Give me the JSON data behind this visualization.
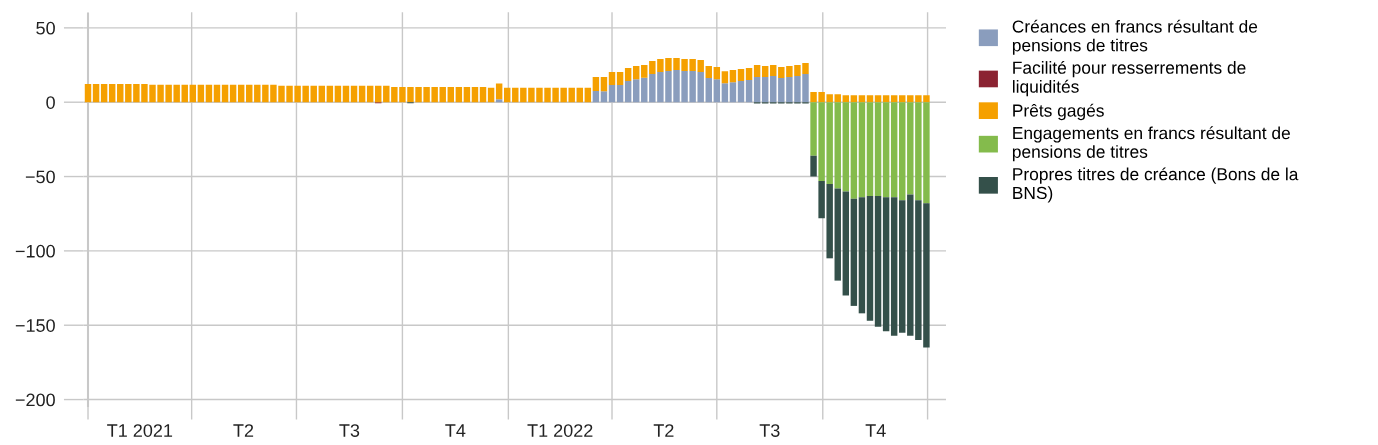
{
  "chart_data": {
    "type": "bar",
    "stacked": true,
    "x": [
      "2021-01-01",
      "2021-01-08",
      "2021-01-15",
      "2021-01-22",
      "2021-01-29",
      "2021-02-05",
      "2021-02-12",
      "2021-02-19",
      "2021-02-26",
      "2021-03-05",
      "2021-03-12",
      "2021-03-19",
      "2021-03-26",
      "2021-04-02",
      "2021-04-09",
      "2021-04-16",
      "2021-04-23",
      "2021-04-30",
      "2021-05-07",
      "2021-05-14",
      "2021-05-21",
      "2021-05-28",
      "2021-06-04",
      "2021-06-11",
      "2021-06-18",
      "2021-06-25",
      "2021-07-02",
      "2021-07-09",
      "2021-07-16",
      "2021-07-23",
      "2021-07-30",
      "2021-08-06",
      "2021-08-13",
      "2021-08-20",
      "2021-08-27",
      "2021-09-03",
      "2021-09-10",
      "2021-09-17",
      "2021-09-24",
      "2021-10-01",
      "2021-10-08",
      "2021-10-15",
      "2021-10-22",
      "2021-10-29",
      "2021-11-05",
      "2021-11-12",
      "2021-11-19",
      "2021-11-26",
      "2021-12-03",
      "2021-12-10",
      "2021-12-17",
      "2021-12-24",
      "2021-12-31",
      "2022-01-07",
      "2022-01-14",
      "2022-01-21",
      "2022-01-28",
      "2022-02-04",
      "2022-02-11",
      "2022-02-18",
      "2022-02-25",
      "2022-03-04",
      "2022-03-11",
      "2022-03-18",
      "2022-03-25",
      "2022-04-01",
      "2022-04-08",
      "2022-04-15",
      "2022-04-22",
      "2022-04-29",
      "2022-05-06",
      "2022-05-13",
      "2022-05-20",
      "2022-05-27",
      "2022-06-03",
      "2022-06-10",
      "2022-06-17",
      "2022-06-24",
      "2022-07-01",
      "2022-07-08",
      "2022-07-15",
      "2022-07-22",
      "2022-07-29",
      "2022-08-05",
      "2022-08-12",
      "2022-08-19",
      "2022-08-26",
      "2022-09-02",
      "2022-09-09",
      "2022-09-16",
      "2022-09-23",
      "2022-09-30",
      "2022-10-07",
      "2022-10-14",
      "2022-10-21",
      "2022-10-28",
      "2022-11-04",
      "2022-11-11",
      "2022-11-18",
      "2022-11-25",
      "2022-12-02",
      "2022-12-09",
      "2022-12-16",
      "2022-12-23",
      "2022-12-30"
    ],
    "series": [
      {
        "name": "Créances en francs résultant de\npensions de titres",
        "color": "#8a9dbd",
        "values": [
          0,
          0,
          0,
          0,
          0,
          0,
          0,
          0,
          0,
          0,
          0,
          0,
          0,
          0,
          0,
          0,
          0,
          0,
          0,
          0,
          0,
          0,
          0,
          0,
          0,
          0,
          0,
          0,
          0,
          0,
          0,
          0,
          0,
          0,
          0,
          0,
          0,
          0,
          0,
          0,
          0,
          0,
          0,
          0,
          0,
          0,
          0,
          0,
          0,
          0,
          0,
          2,
          0,
          0,
          0,
          0,
          0,
          0,
          0,
          0,
          0,
          0,
          0,
          7.6,
          7.4,
          11.5,
          11.5,
          14.2,
          15.5,
          16.4,
          18.9,
          20.3,
          21,
          21.6,
          21,
          21,
          20.3,
          16.2,
          15.5,
          12.8,
          13.5,
          14.2,
          14.9,
          16.9,
          16.9,
          17.6,
          16.2,
          16.9,
          17.6,
          18.9,
          0,
          0,
          0,
          0,
          0,
          0,
          0,
          0,
          0,
          0,
          0,
          0,
          0,
          0,
          0
        ]
      },
      {
        "name": "Facilité pour resserrements de\nliquidités",
        "color": "#8b2332",
        "values": [
          0,
          0,
          0,
          0,
          0,
          0,
          0,
          0,
          0,
          0,
          0,
          0,
          0,
          0,
          0,
          0,
          0,
          0,
          0,
          0,
          0,
          0,
          0,
          0,
          0,
          0,
          0,
          0,
          0,
          0,
          0,
          0,
          0,
          0,
          0,
          0,
          -0.7,
          0,
          0,
          0,
          0,
          0,
          0,
          0,
          0,
          0,
          0,
          0,
          0,
          0,
          0,
          0,
          0,
          0,
          0,
          0,
          0,
          0,
          0,
          0,
          0,
          0,
          0,
          0,
          0,
          0,
          0,
          0,
          0,
          0,
          0,
          0,
          0,
          0,
          0,
          0,
          0,
          0,
          0,
          0,
          0,
          0,
          0,
          0,
          0,
          0,
          0,
          0,
          0,
          0,
          0,
          0,
          0,
          0,
          0,
          0,
          0,
          0,
          0,
          0,
          0,
          0,
          0,
          0,
          0
        ]
      },
      {
        "name": "Prêts gagés",
        "color": "#f5a000",
        "values": [
          12.3,
          12.3,
          12.3,
          12.3,
          12.3,
          12.3,
          12.3,
          12.3,
          11.7,
          11.7,
          11.7,
          11.7,
          11.7,
          11.7,
          11.7,
          11.7,
          11.7,
          11.7,
          11.7,
          11.7,
          11.7,
          11.7,
          11.7,
          11.7,
          11,
          11,
          11,
          11,
          11,
          11,
          11,
          11,
          11,
          11,
          11,
          11,
          11,
          11,
          10.3,
          10.3,
          10.3,
          10.3,
          10.3,
          10.3,
          10.3,
          10.3,
          10.3,
          10.3,
          10.3,
          10.3,
          9.7,
          10.5,
          9.7,
          9.7,
          9.7,
          9.7,
          9.7,
          9.7,
          9.7,
          9.7,
          9.7,
          9.7,
          9.7,
          9.3,
          9.5,
          8.8,
          8.8,
          8.8,
          8.8,
          8.6,
          8.8,
          8.7,
          8.7,
          8.1,
          8,
          8,
          8.1,
          8.1,
          8.1,
          8.1,
          8.1,
          8.1,
          8.1,
          8.1,
          7.4,
          7.4,
          7.4,
          7.4,
          7.4,
          7.5,
          6.8,
          6.8,
          5.4,
          5.4,
          4.7,
          4.7,
          4.7,
          4.7,
          4.7,
          4.7,
          4.7,
          4.7,
          4.7,
          4.7,
          4.7
        ]
      },
      {
        "name": "Engagements en francs résultant de\npensions de titres",
        "color": "#84bb4c",
        "values": [
          0,
          0,
          0,
          0,
          0,
          0,
          0,
          0,
          0,
          0,
          0,
          0,
          0,
          0,
          0,
          0,
          0,
          0,
          0,
          0,
          0,
          0,
          0,
          0,
          0,
          0,
          0,
          0,
          0,
          0,
          0,
          0,
          0,
          0,
          0,
          0,
          0,
          0,
          0,
          0,
          0,
          0,
          0,
          0,
          0,
          0,
          0,
          0,
          0,
          0,
          0,
          0,
          0,
          0,
          0,
          0,
          0,
          0,
          0,
          0,
          0,
          0,
          0,
          0,
          0,
          0,
          0,
          0,
          0,
          0,
          0,
          0,
          0,
          0,
          0,
          0,
          0,
          0,
          0,
          0,
          0,
          0,
          0,
          0,
          0,
          0,
          0,
          0,
          0,
          0,
          -36,
          -53,
          -55,
          -58,
          -60,
          -65,
          -64,
          -63,
          -63,
          -64,
          -64,
          -66,
          -62,
          -66,
          -68
        ]
      },
      {
        "name": "Propres titres de créance (Bons de la\nBNS)",
        "color": "#34504a",
        "values": [
          0,
          0,
          0,
          0,
          0,
          0,
          0,
          0,
          0,
          0,
          0,
          0,
          0,
          0,
          0,
          0,
          0,
          0,
          0,
          0,
          0,
          0,
          0,
          0,
          0,
          0,
          0,
          0,
          0,
          0,
          0,
          0,
          0,
          0,
          0,
          0,
          0,
          0,
          0,
          0,
          -0.7,
          0,
          0,
          0,
          0,
          0,
          0,
          0,
          0,
          0,
          0,
          0,
          0,
          0,
          0,
          0,
          0,
          0,
          0,
          0,
          0,
          0,
          0,
          0,
          0,
          0,
          0,
          0,
          0,
          0,
          0,
          0,
          0,
          0,
          0,
          0,
          0,
          0,
          0,
          0,
          0,
          0,
          0,
          -0.8,
          -0.8,
          -0.8,
          -0.8,
          -0.8,
          -0.8,
          -0.8,
          -14,
          -25,
          -50,
          -62,
          -70,
          -72,
          -78,
          -84,
          -88,
          -90,
          -93,
          -89,
          -95,
          -94,
          -97
        ]
      }
    ],
    "xlim": [
      "2020-12-28",
      "2023-01-16"
    ],
    "xticks": [
      {
        "value": "2021-01-01",
        "label": null
      },
      {
        "value": "2021-02-15",
        "label": "T1 2021"
      },
      {
        "value": "2021-04-01",
        "label": null
      },
      {
        "value": "2021-05-16",
        "label": "T2"
      },
      {
        "value": "2021-07-01",
        "label": null
      },
      {
        "value": "2021-08-16",
        "label": "T3"
      },
      {
        "value": "2021-10-01",
        "label": null
      },
      {
        "value": "2021-11-16",
        "label": "T4"
      },
      {
        "value": "2022-01-01",
        "label": null
      },
      {
        "value": "2022-02-15",
        "label": "T1 2022"
      },
      {
        "value": "2022-04-01",
        "label": null
      },
      {
        "value": "2022-05-16",
        "label": "T2"
      },
      {
        "value": "2022-07-01",
        "label": null
      },
      {
        "value": "2022-08-16",
        "label": "T3"
      },
      {
        "value": "2022-10-01",
        "label": null
      },
      {
        "value": "2022-11-16",
        "label": "T4"
      },
      {
        "value": "2022-12-31",
        "label": null
      }
    ],
    "ylim": [
      -205,
      60
    ],
    "yticks": [
      {
        "value": -200,
        "label": "−200"
      },
      {
        "value": -150,
        "label": "−150"
      },
      {
        "value": -100,
        "label": "−100"
      },
      {
        "value": -50,
        "label": "−50"
      },
      0,
      50
    ],
    "grid": true,
    "legend": "top right"
  }
}
